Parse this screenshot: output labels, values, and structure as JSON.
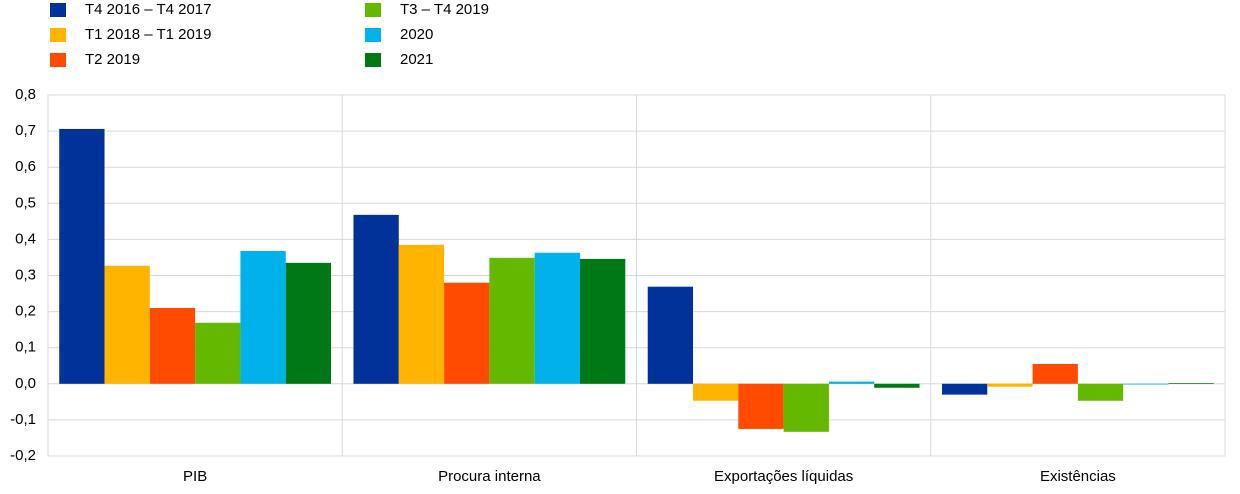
{
  "chart_data": {
    "type": "bar",
    "categories": [
      "PIB",
      "Procura interna",
      "Exportações líquidas",
      "Existências"
    ],
    "series": [
      {
        "name": "T4 2016 – T4 2017",
        "color": "#003299",
        "values": [
          0.706,
          0.468,
          0.269,
          -0.03
        ]
      },
      {
        "name": "T1 2018 – T1 2019",
        "color": "#ffb400",
        "values": [
          0.327,
          0.385,
          -0.047,
          -0.008
        ]
      },
      {
        "name": "T2 2019",
        "color": "#ff4b00",
        "values": [
          0.21,
          0.28,
          -0.125,
          0.055
        ]
      },
      {
        "name": "T3 – T4 2019",
        "color": "#65b800",
        "values": [
          0.169,
          0.349,
          -0.133,
          -0.047
        ]
      },
      {
        "name": "2020",
        "color": "#00b1ea",
        "values": [
          0.368,
          0.363,
          0.006,
          -0.002
        ]
      },
      {
        "name": "2021",
        "color": "#007816",
        "values": [
          0.335,
          0.346,
          -0.011,
          0.002
        ]
      }
    ],
    "ylim": [
      -0.2,
      0.8
    ],
    "yticks": [
      {
        "value": -0.2,
        "label": "-0,2"
      },
      {
        "value": -0.1,
        "label": "-0,1"
      },
      {
        "value": 0,
        "label": "0,0"
      },
      {
        "value": 0.1,
        "label": "0,1"
      },
      {
        "value": 0.2,
        "label": "0,2"
      },
      {
        "value": 0.3,
        "label": "0,3"
      },
      {
        "value": 0.4,
        "label": "0,4"
      },
      {
        "value": 0.5,
        "label": "0,5"
      },
      {
        "value": 0.6,
        "label": "0,6"
      },
      {
        "value": 0.7,
        "label": "0,7"
      },
      {
        "value": 0.8,
        "label": "0,8"
      }
    ],
    "grid": true
  }
}
